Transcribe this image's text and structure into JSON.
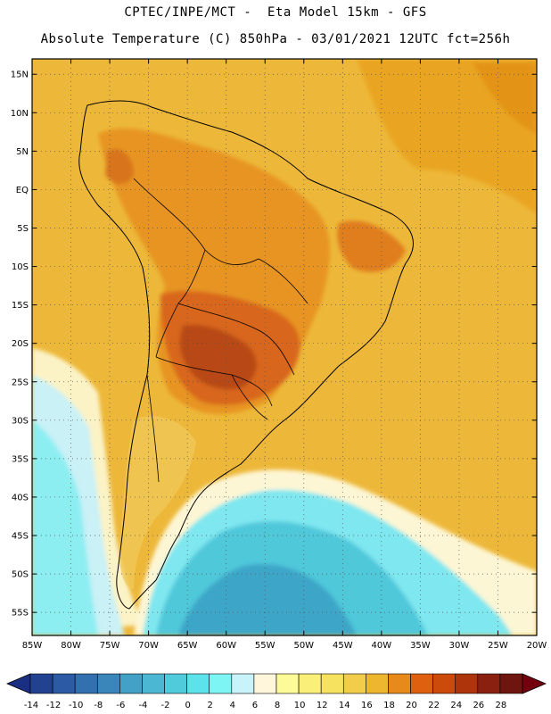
{
  "header": {
    "line1": "CPTEC/INPE/MCT -  Eta Model 15km - GFS",
    "line2": "Absolute Temperature (C) 850hPa - 03/01/2021 12UTC fct=256h"
  },
  "map": {
    "lon_range": [
      -85,
      -20
    ],
    "lat_range": [
      -58,
      17
    ],
    "lat_labels": [
      "15N",
      "10N",
      "5N",
      "EQ",
      "5S",
      "10S",
      "15S",
      "20S",
      "25S",
      "30S",
      "35S",
      "40S",
      "45S",
      "50S",
      "55S"
    ],
    "lon_labels": [
      "85W",
      "80W",
      "75W",
      "70W",
      "65W",
      "60W",
      "55W",
      "50W",
      "45W",
      "40W",
      "35W",
      "30W",
      "25W",
      "20W"
    ],
    "background_color": "#edb83a"
  },
  "colorbar": {
    "labels": [
      "-14",
      "-12",
      "-10",
      "-8",
      "-6",
      "-4",
      "-2",
      "0",
      "2",
      "4",
      "6",
      "8",
      "10",
      "12",
      "14",
      "16",
      "18",
      "20",
      "22",
      "24",
      "26",
      "28"
    ],
    "colors": [
      "#22418f",
      "#2c5aa4",
      "#3270b0",
      "#3a86bb",
      "#43a0c6",
      "#4bb7d2",
      "#4fcbdc",
      "#5ce2ea",
      "#7df5f5",
      "#c8f3fb",
      "#fff6dc",
      "#fcfb98",
      "#f9ef79",
      "#f6e25e",
      "#f1cd4a",
      "#eeb62f",
      "#e7891b",
      "#df6110",
      "#cc4b0b",
      "#ae340c",
      "#8a2110",
      "#6f150f"
    ],
    "under_color": "#1a2f82",
    "over_color": "#73000f"
  }
}
